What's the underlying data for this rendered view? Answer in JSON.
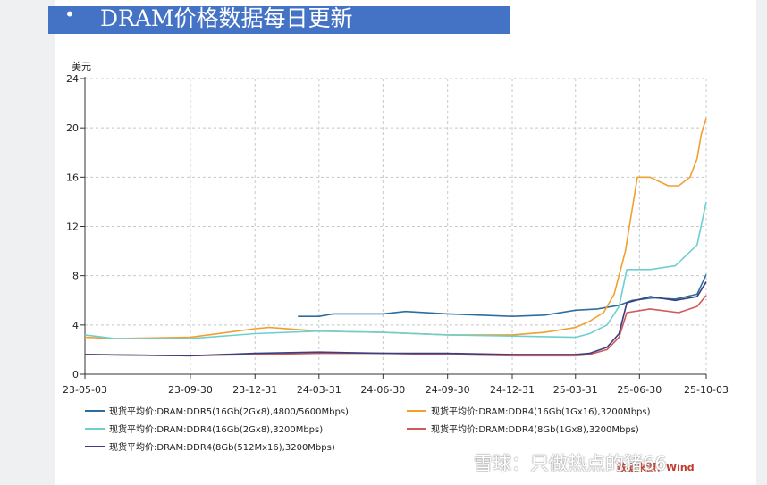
{
  "header": {
    "bullet": "•",
    "title": "DRAM价格数据每日更新"
  },
  "colors": {
    "title_bg": "#4472c4",
    "ddr5": "#2e6e9e",
    "ddr4_1gx16": "#f0a030",
    "ddr4_2gx8": "#6fcfcf",
    "ddr4_1gx8": "#d05a5a",
    "ddr4_512m": "#3a3f80"
  },
  "chart_data": {
    "type": "line",
    "ylabel": "美元",
    "ylim": [
      0,
      24
    ],
    "yticks": [
      0,
      4,
      8,
      12,
      16,
      20,
      24
    ],
    "xlim": [
      "23-05-03",
      "25-10-03"
    ],
    "xticks": [
      "23-05-03",
      "23-09-30",
      "23-12-31",
      "24-03-31",
      "24-06-30",
      "24-09-30",
      "24-12-31",
      "25-03-31",
      "25-06-30",
      "25-10-03"
    ],
    "grid": true,
    "legend_position": "bottom",
    "series": [
      {
        "name": "现货平均价:DRAM:DDR5(16Gb(2Gx8),4800/5600Mbps)",
        "color": "#2e6e9e",
        "points": [
          [
            "24-03-01",
            4.7
          ],
          [
            "24-03-31",
            4.7
          ],
          [
            "24-04-20",
            4.9
          ],
          [
            "24-06-30",
            4.9
          ],
          [
            "24-08-01",
            5.1
          ],
          [
            "24-09-30",
            4.9
          ],
          [
            "24-12-31",
            4.7
          ],
          [
            "25-02-15",
            4.8
          ],
          [
            "25-03-31",
            5.2
          ],
          [
            "25-05-01",
            5.3
          ],
          [
            "25-06-01",
            5.6
          ],
          [
            "25-06-20",
            6.0
          ],
          [
            "25-07-20",
            6.2
          ],
          [
            "25-08-20",
            6.1
          ],
          [
            "25-09-20",
            6.5
          ],
          [
            "25-10-03",
            8.1
          ]
        ]
      },
      {
        "name": "现货平均价:DRAM:DDR4(16Gb(1Gx16),3200Mbps)",
        "color": "#f0a030",
        "points": [
          [
            "23-05-03",
            3.0
          ],
          [
            "23-06-15",
            2.9
          ],
          [
            "23-09-30",
            3.0
          ],
          [
            "23-12-31",
            3.7
          ],
          [
            "24-01-20",
            3.8
          ],
          [
            "24-03-31",
            3.5
          ],
          [
            "24-06-30",
            3.4
          ],
          [
            "24-09-30",
            3.2
          ],
          [
            "24-12-31",
            3.2
          ],
          [
            "25-02-15",
            3.4
          ],
          [
            "25-03-31",
            3.8
          ],
          [
            "25-04-20",
            4.3
          ],
          [
            "25-05-10",
            5.0
          ],
          [
            "25-05-25",
            6.5
          ],
          [
            "25-06-10",
            10.0
          ],
          [
            "25-06-20",
            13.5
          ],
          [
            "25-06-27",
            16.0
          ],
          [
            "25-07-15",
            16.0
          ],
          [
            "25-08-10",
            15.3
          ],
          [
            "25-08-25",
            15.3
          ],
          [
            "25-09-10",
            16.0
          ],
          [
            "25-09-20",
            17.5
          ],
          [
            "25-09-26",
            19.5
          ],
          [
            "25-10-03",
            20.8
          ]
        ]
      },
      {
        "name": "现货平均价:DRAM:DDR4(16Gb(2Gx8),3200Mbps)",
        "color": "#6fcfcf",
        "points": [
          [
            "23-05-03",
            3.2
          ],
          [
            "23-06-15",
            2.9
          ],
          [
            "23-09-30",
            2.9
          ],
          [
            "23-12-31",
            3.3
          ],
          [
            "24-03-31",
            3.5
          ],
          [
            "24-06-30",
            3.4
          ],
          [
            "24-09-30",
            3.2
          ],
          [
            "24-12-31",
            3.1
          ],
          [
            "25-03-31",
            3.0
          ],
          [
            "25-04-20",
            3.3
          ],
          [
            "25-05-15",
            4.0
          ],
          [
            "25-06-01",
            5.5
          ],
          [
            "25-06-12",
            8.5
          ],
          [
            "25-07-15",
            8.5
          ],
          [
            "25-08-20",
            8.8
          ],
          [
            "25-09-20",
            10.5
          ],
          [
            "25-10-03",
            14.0
          ]
        ]
      },
      {
        "name": "现货平均价:DRAM:DDR4(8Gb(1Gx8),3200Mbps)",
        "color": "#d05a5a",
        "points": [
          [
            "23-05-03",
            1.6
          ],
          [
            "23-09-30",
            1.5
          ],
          [
            "23-12-31",
            1.6
          ],
          [
            "24-03-31",
            1.7
          ],
          [
            "24-06-30",
            1.7
          ],
          [
            "24-09-30",
            1.6
          ],
          [
            "24-12-31",
            1.5
          ],
          [
            "25-03-31",
            1.5
          ],
          [
            "25-04-20",
            1.6
          ],
          [
            "25-05-15",
            2.0
          ],
          [
            "25-06-01",
            3.0
          ],
          [
            "25-06-12",
            5.0
          ],
          [
            "25-07-15",
            5.3
          ],
          [
            "25-08-25",
            5.0
          ],
          [
            "25-09-20",
            5.5
          ],
          [
            "25-10-03",
            6.4
          ]
        ]
      },
      {
        "name": "现货平均价:DRAM:DDR4(8Gb(512Mx16),3200Mbps)",
        "color": "#3a3f80",
        "points": [
          [
            "23-05-03",
            1.6
          ],
          [
            "23-09-30",
            1.5
          ],
          [
            "23-12-31",
            1.7
          ],
          [
            "24-03-31",
            1.8
          ],
          [
            "24-06-30",
            1.7
          ],
          [
            "24-09-30",
            1.7
          ],
          [
            "24-12-31",
            1.6
          ],
          [
            "25-03-31",
            1.6
          ],
          [
            "25-04-20",
            1.7
          ],
          [
            "25-05-15",
            2.2
          ],
          [
            "25-06-01",
            3.3
          ],
          [
            "25-06-12",
            5.8
          ],
          [
            "25-07-15",
            6.3
          ],
          [
            "25-08-20",
            6.0
          ],
          [
            "25-09-20",
            6.3
          ],
          [
            "25-10-03",
            7.5
          ]
        ]
      }
    ]
  },
  "source_label": "数据来源：Wind",
  "watermark": "雪球：只做热点的猪66"
}
